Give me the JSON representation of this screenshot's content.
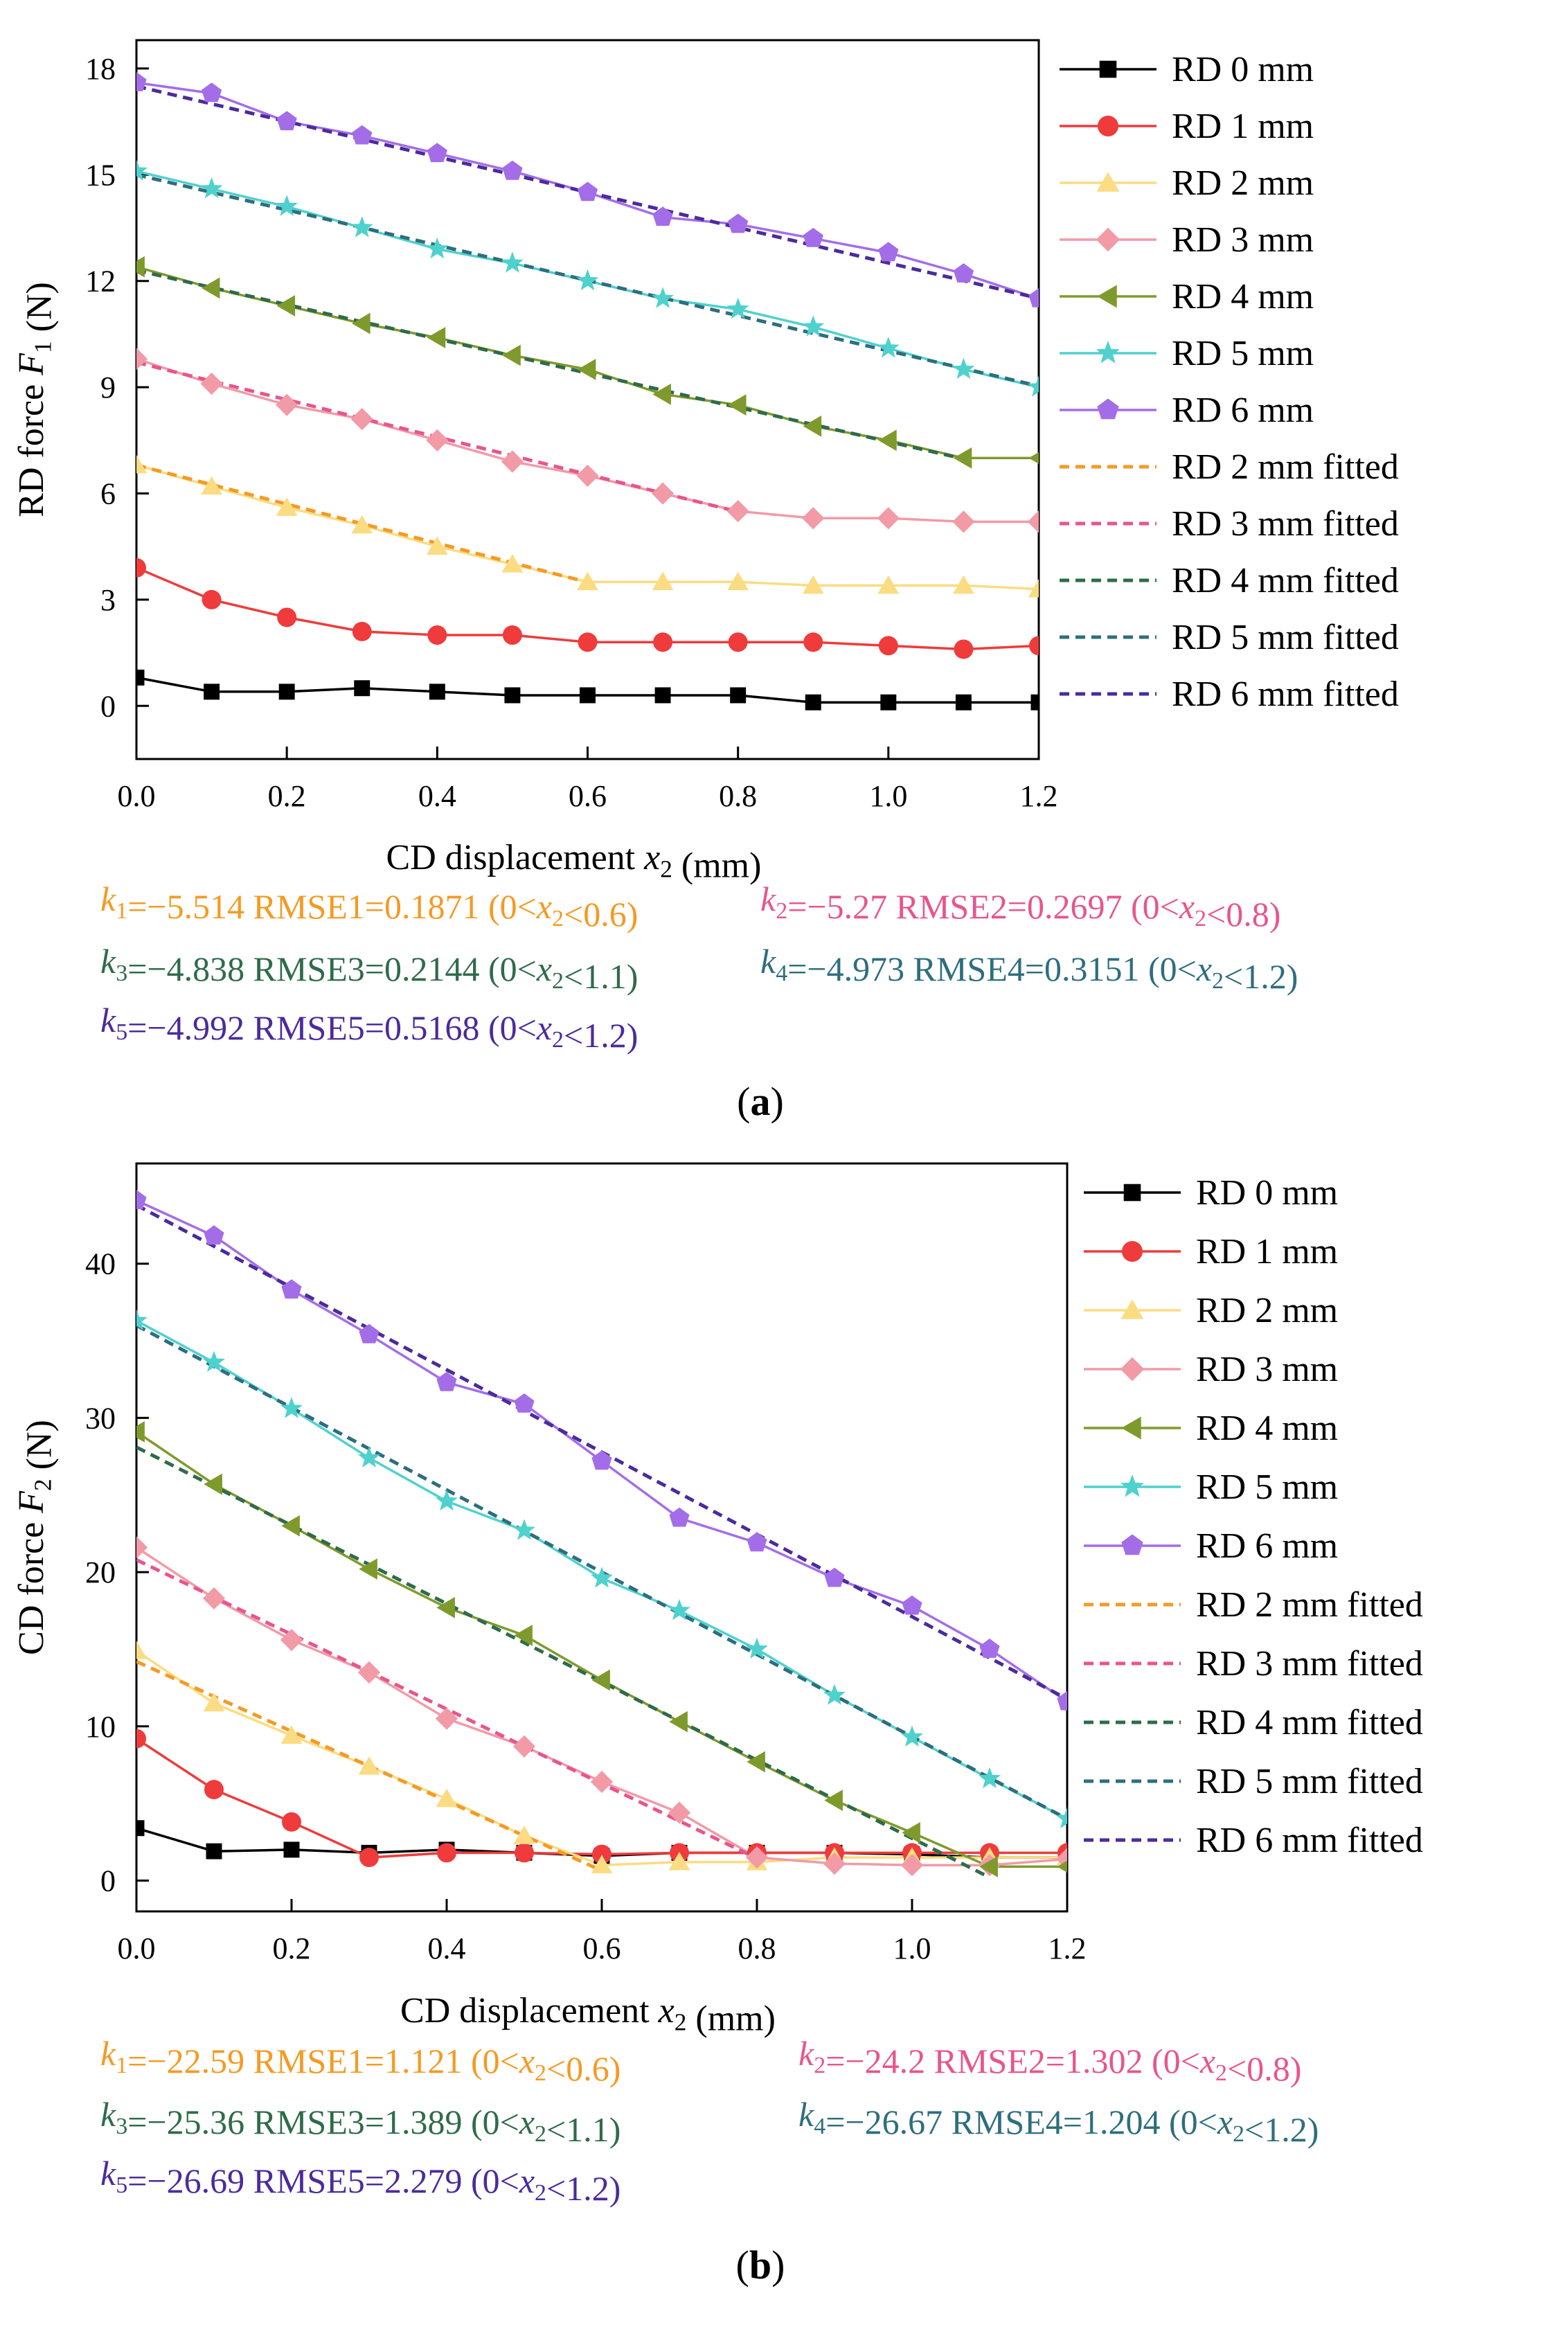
{
  "colors": {
    "rd0": "#000000",
    "rd1": "#ef3b3b",
    "rd2": "#fbdc82",
    "rd3": "#f29aa6",
    "rd4": "#7f9a2c",
    "rd5": "#4fd1ce",
    "rd6": "#a46de8",
    "fit2": "#f59a23",
    "fit3": "#e8558c",
    "fit4": "#2f6b4a",
    "fit5": "#2e6e7e",
    "fit6": "#4b2b9b"
  },
  "chart_data": [
    {
      "panel_label": "(a)",
      "panel_letter": "a",
      "type": "line",
      "xlabel": "CD displacement x2 (mm)",
      "ylabel": "RD force F1 (N)",
      "xlim": [
        0,
        1.2
      ],
      "ylim": [
        -1.5,
        18.8
      ],
      "xticks": [
        0.0,
        0.2,
        0.4,
        0.6,
        0.8,
        1.0,
        1.2
      ],
      "xtick_labels": [
        "0.0",
        "0.2",
        "0.4",
        "0.6",
        "0.8",
        "1.0",
        "1.2"
      ],
      "yticks": [
        0,
        3,
        6,
        9,
        12,
        15,
        18
      ],
      "ytick_labels": [
        "0",
        "3",
        "6",
        "9",
        "12",
        "15",
        "18"
      ],
      "grid": false,
      "legend_position": "right",
      "x": [
        0.0,
        0.1,
        0.2,
        0.3,
        0.4,
        0.5,
        0.6,
        0.7,
        0.8,
        0.9,
        1.0,
        1.1,
        1.2
      ],
      "series": [
        {
          "name": "RD 0 mm",
          "color_key": "rd0",
          "marker": "square",
          "values": [
            0.8,
            0.4,
            0.4,
            0.5,
            0.4,
            0.3,
            0.3,
            0.3,
            0.3,
            0.1,
            0.1,
            0.1,
            0.1
          ]
        },
        {
          "name": "RD 1 mm",
          "color_key": "rd1",
          "marker": "circle",
          "values": [
            3.9,
            3.0,
            2.5,
            2.1,
            2.0,
            2.0,
            1.8,
            1.8,
            1.8,
            1.8,
            1.7,
            1.6,
            1.7
          ]
        },
        {
          "name": "RD 2 mm",
          "color_key": "rd2",
          "marker": "triangle-up",
          "values": [
            6.8,
            6.2,
            5.6,
            5.1,
            4.5,
            4.0,
            3.5,
            3.5,
            3.5,
            3.4,
            3.4,
            3.4,
            3.3
          ]
        },
        {
          "name": "RD 3 mm",
          "color_key": "rd3",
          "marker": "diamond",
          "values": [
            9.8,
            9.1,
            8.5,
            8.1,
            7.5,
            6.9,
            6.5,
            6.0,
            5.5,
            5.3,
            5.3,
            5.2,
            5.2
          ]
        },
        {
          "name": "RD 4 mm",
          "color_key": "rd4",
          "marker": "triangle-left",
          "values": [
            12.4,
            11.8,
            11.3,
            10.8,
            10.4,
            9.9,
            9.5,
            8.8,
            8.5,
            7.9,
            7.5,
            7.0,
            7.0
          ]
        },
        {
          "name": "RD 5 mm",
          "color_key": "rd5",
          "marker": "star",
          "values": [
            15.1,
            14.6,
            14.1,
            13.5,
            12.9,
            12.5,
            12.0,
            11.5,
            11.2,
            10.7,
            10.1,
            9.5,
            9.0
          ]
        },
        {
          "name": "RD 6 mm",
          "color_key": "rd6",
          "marker": "pentagon",
          "values": [
            17.6,
            17.3,
            16.5,
            16.1,
            15.6,
            15.1,
            14.5,
            13.8,
            13.6,
            13.2,
            12.8,
            12.2,
            11.5
          ]
        }
      ],
      "fitted": [
        {
          "name": "RD 2 mm fitted",
          "color_key": "fit2",
          "x_range": [
            0,
            0.6
          ],
          "intercept": 6.8,
          "slope": -5.514
        },
        {
          "name": "RD 3 mm fitted",
          "color_key": "fit3",
          "x_range": [
            0,
            0.8
          ],
          "intercept": 9.7,
          "slope": -5.27
        },
        {
          "name": "RD 4 mm fitted",
          "color_key": "fit4",
          "x_range": [
            0,
            1.1
          ],
          "intercept": 12.3,
          "slope": -4.838
        },
        {
          "name": "RD 5 mm fitted",
          "color_key": "fit5",
          "x_range": [
            0,
            1.2
          ],
          "intercept": 15.0,
          "slope": -4.973
        },
        {
          "name": "RD 6 mm fitted",
          "color_key": "fit6",
          "x_range": [
            0,
            1.2
          ],
          "intercept": 17.5,
          "slope": -4.992
        }
      ],
      "annotations": [
        {
          "color_key": "fit2",
          "k": "k1=−5.514",
          "rmse": "RMSE1=0.1871",
          "range": "(0<x2<0.6)"
        },
        {
          "color_key": "fit3",
          "k": "k2=−5.27",
          "rmse": "RMSE2=0.2697",
          "range": "(0<x2<0.8)"
        },
        {
          "color_key": "fit4",
          "k": "k3=−4.838",
          "rmse": "RMSE3=0.2144",
          "range": "(0<x2<1.1)"
        },
        {
          "color_key": "fit5",
          "k": "k4=−4.973",
          "rmse": "RMSE4=0.3151",
          "range": "(0<x2<1.2)"
        },
        {
          "color_key": "fit6",
          "k": "k5=−4.992",
          "rmse": "RMSE5=0.5168",
          "range": "(0<x2<1.2)"
        }
      ]
    },
    {
      "panel_label": "(b)",
      "panel_letter": "b",
      "type": "line",
      "xlabel": "CD displacement x2 (mm)",
      "ylabel": "CD force F2 (N)",
      "xlim": [
        0,
        1.2
      ],
      "ylim": [
        -2,
        46.5
      ],
      "xticks": [
        0.0,
        0.2,
        0.4,
        0.6,
        0.8,
        1.0,
        1.2
      ],
      "xtick_labels": [
        "0.0",
        "0.2",
        "0.4",
        "0.6",
        "0.8",
        "1.0",
        "1.2"
      ],
      "yticks": [
        0,
        10,
        20,
        30,
        40
      ],
      "ytick_labels": [
        "0",
        "10",
        "20",
        "30",
        "40"
      ],
      "grid": false,
      "legend_position": "right",
      "x": [
        0.0,
        0.1,
        0.2,
        0.3,
        0.4,
        0.5,
        0.6,
        0.7,
        0.8,
        0.9,
        1.0,
        1.1,
        1.2
      ],
      "series": [
        {
          "name": "RD 0 mm",
          "color_key": "rd0",
          "marker": "square",
          "values": [
            3.4,
            1.9,
            2.0,
            1.8,
            2.0,
            1.8,
            1.6,
            1.8,
            1.8,
            1.8,
            1.7,
            1.5,
            1.5
          ]
        },
        {
          "name": "RD 1 mm",
          "color_key": "rd1",
          "marker": "circle",
          "values": [
            9.2,
            5.9,
            3.8,
            1.5,
            1.8,
            1.8,
            1.7,
            1.8,
            1.8,
            1.8,
            1.8,
            1.8,
            1.8
          ]
        },
        {
          "name": "RD 2 mm",
          "color_key": "rd2",
          "marker": "triangle-up",
          "values": [
            14.9,
            11.5,
            9.4,
            7.4,
            5.3,
            2.9,
            1.0,
            1.2,
            1.2,
            1.5,
            1.5,
            1.5,
            1.5
          ]
        },
        {
          "name": "RD 3 mm",
          "color_key": "rd3",
          "marker": "diamond",
          "values": [
            21.6,
            18.3,
            15.6,
            13.5,
            10.5,
            8.7,
            6.4,
            4.4,
            1.5,
            1.1,
            1.0,
            1.0,
            1.4
          ]
        },
        {
          "name": "RD 4 mm",
          "color_key": "rd4",
          "marker": "triangle-left",
          "values": [
            29.1,
            25.7,
            23.0,
            20.2,
            17.7,
            15.9,
            13.0,
            10.3,
            7.7,
            5.2,
            3.1,
            0.9,
            0.9
          ]
        },
        {
          "name": "RD 5 mm",
          "color_key": "rd5",
          "marker": "star",
          "values": [
            36.3,
            33.6,
            30.6,
            27.4,
            24.6,
            22.7,
            19.6,
            17.5,
            15.0,
            12.0,
            9.3,
            6.6,
            4.0
          ]
        },
        {
          "name": "RD 6 mm",
          "color_key": "rd6",
          "marker": "pentagon",
          "values": [
            44.1,
            41.8,
            38.3,
            35.4,
            32.3,
            30.9,
            27.2,
            23.5,
            21.9,
            19.6,
            17.8,
            15.0,
            11.6
          ]
        }
      ],
      "fitted": [
        {
          "name": "RD 2 mm fitted",
          "color_key": "fit2",
          "x_range": [
            0,
            0.6
          ],
          "intercept": 14.2,
          "slope": -22.59
        },
        {
          "name": "RD 3 mm fitted",
          "color_key": "fit3",
          "x_range": [
            0,
            0.8
          ],
          "intercept": 20.8,
          "slope": -24.2
        },
        {
          "name": "RD 4 mm fitted",
          "color_key": "fit4",
          "x_range": [
            0,
            1.1
          ],
          "intercept": 28.1,
          "slope": -25.36
        },
        {
          "name": "RD 5 mm fitted",
          "color_key": "fit5",
          "x_range": [
            0,
            1.2
          ],
          "intercept": 36.0,
          "slope": -26.67
        },
        {
          "name": "RD 6 mm fitted",
          "color_key": "fit6",
          "x_range": [
            0,
            1.2
          ],
          "intercept": 43.8,
          "slope": -26.69
        }
      ],
      "annotations": [
        {
          "color_key": "fit2",
          "k": "k1=−22.59",
          "rmse": "RMSE1=1.121",
          "range": "(0<x2<0.6)"
        },
        {
          "color_key": "fit3",
          "k": "k2=−24.2",
          "rmse": "RMSE2=1.302",
          "range": "(0<x2<0.8)"
        },
        {
          "color_key": "fit4",
          "k": "k3=−25.36",
          "rmse": "RMSE3=1.389",
          "range": "(0<x2<1.1)"
        },
        {
          "color_key": "fit5",
          "k": "k4=−26.67",
          "rmse": "RMSE4=1.204",
          "range": "(0<x2<1.2)"
        },
        {
          "color_key": "fit6",
          "k": "k5=−26.69",
          "rmse": "RMSE5=2.279",
          "range": "(0<x2<1.2)"
        }
      ]
    }
  ]
}
